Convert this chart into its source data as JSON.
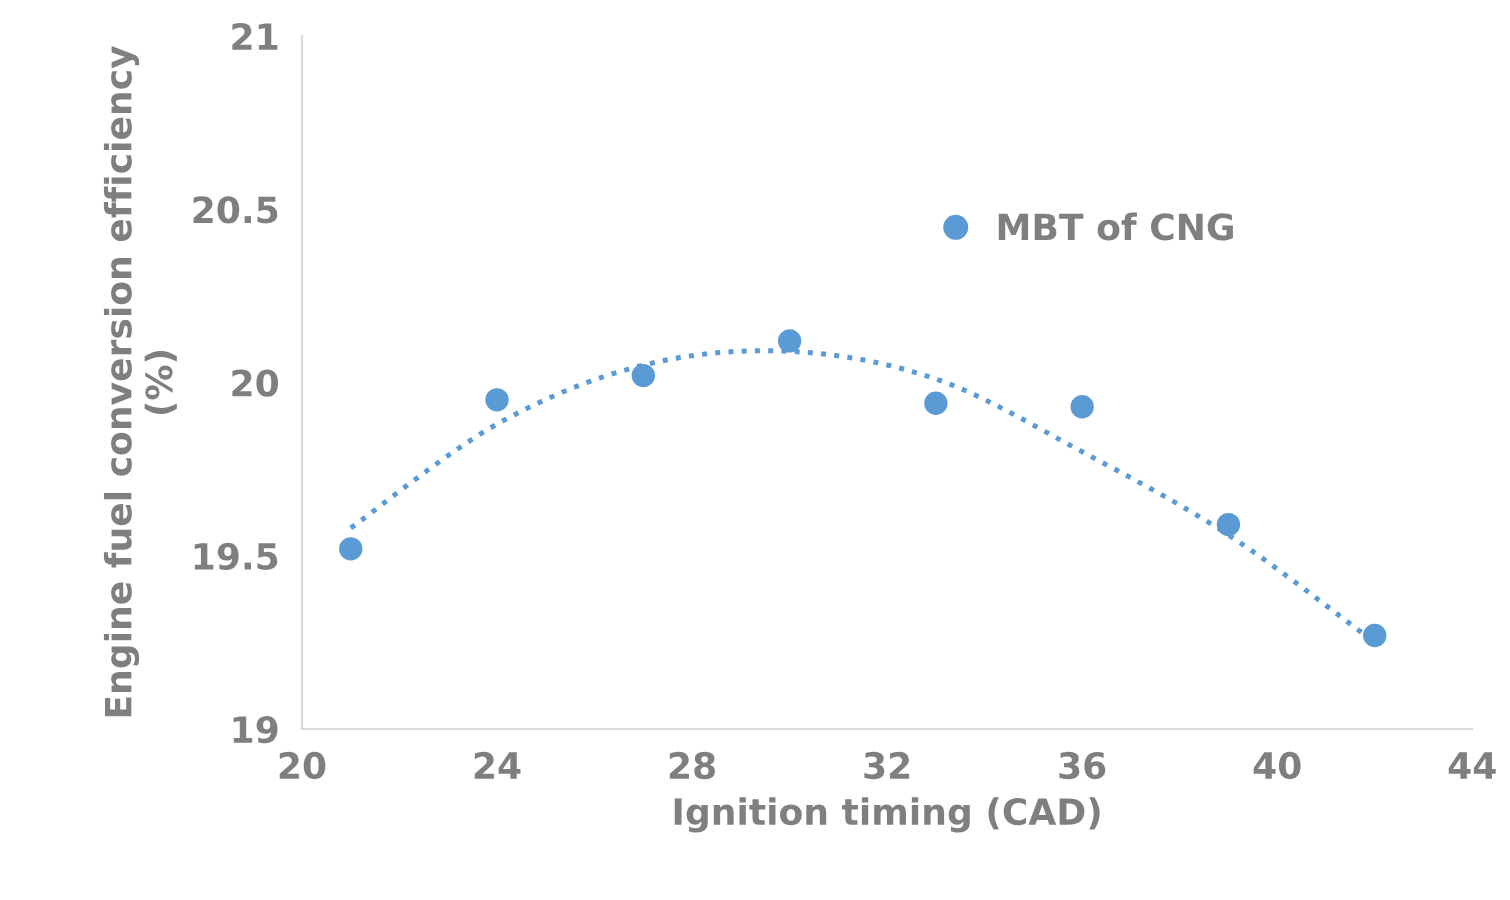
{
  "chart_data": {
    "type": "scatter",
    "xlabel": "Ignition timing (CAD)",
    "ylabel": "Engine fuel conversion efficiency\n(%)",
    "xlim": [
      20,
      44
    ],
    "xticks": [
      20,
      24,
      28,
      32,
      36,
      40,
      44
    ],
    "ylim": [
      19,
      21
    ],
    "yticks": [
      19,
      19.5,
      20,
      20.5,
      21
    ],
    "grid": false,
    "legend": "top",
    "series": [
      {
        "name": "MBT of CNG",
        "marker": "circle",
        "color": "#5b9bd5",
        "x": [
          21,
          24,
          27,
          30,
          33,
          36,
          39,
          42
        ],
        "values": [
          19.52,
          19.95,
          20.02,
          20.12,
          19.94,
          19.93,
          19.59,
          19.27
        ]
      },
      {
        "type": "line",
        "line_style": "dotted",
        "color": "#5b9bd5",
        "x": [
          21,
          24,
          27,
          30,
          33,
          36,
          39,
          42
        ],
        "values": [
          19.58,
          19.88,
          20.05,
          20.09,
          20.01,
          19.8,
          19.56,
          19.25
        ]
      }
    ]
  }
}
